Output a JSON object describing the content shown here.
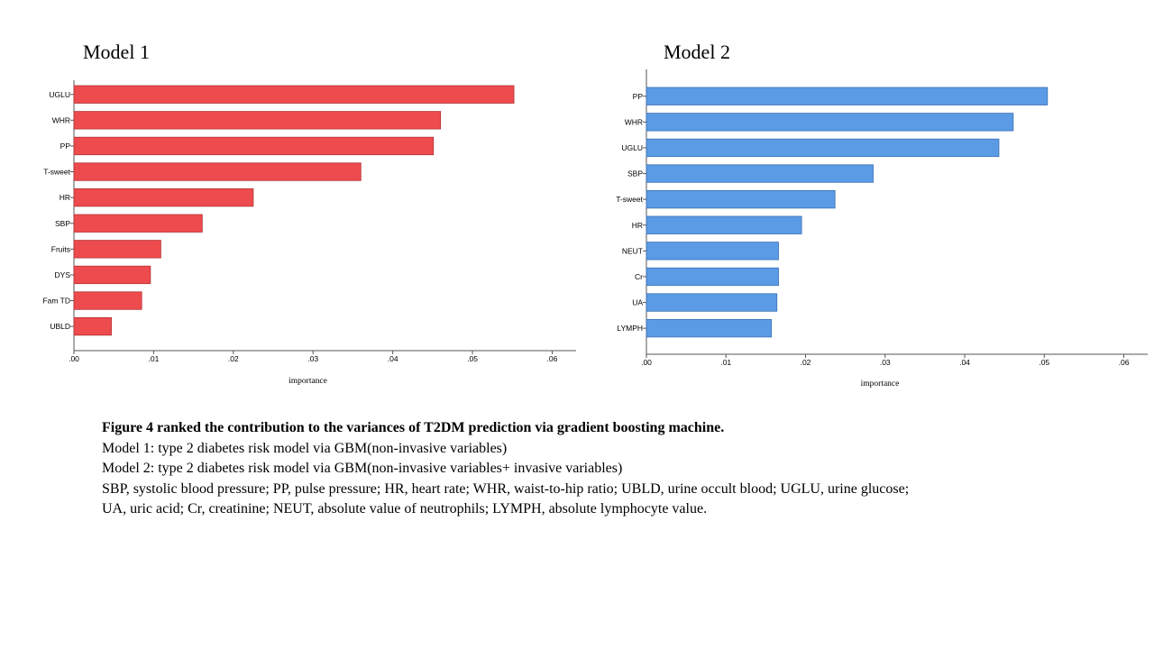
{
  "panels": [
    {
      "title": "Model 1"
    },
    {
      "title": "Model 2"
    }
  ],
  "chart_data": [
    {
      "type": "bar",
      "orientation": "horizontal",
      "title": "Model 1",
      "xlabel": "importance",
      "ylabel": "",
      "xlim": [
        0,
        0.063
      ],
      "xticks": [
        ".00",
        ".01",
        ".02",
        ".03",
        ".04",
        ".05",
        ".06"
      ],
      "color": "#ee4b4e",
      "categories": [
        "UGLU",
        "WHR",
        "PP",
        "T-sweet",
        "HR",
        "SBP",
        "Fruits",
        "DYS",
        "Fam TD",
        "UBLD"
      ],
      "values": [
        0.0552,
        0.046,
        0.0451,
        0.036,
        0.0225,
        0.0161,
        0.0109,
        0.0096,
        0.0085,
        0.0047
      ]
    },
    {
      "type": "bar",
      "orientation": "horizontal",
      "title": "Model 2",
      "xlabel": "importance",
      "ylabel": "",
      "xlim": [
        0,
        0.063
      ],
      "xticks": [
        ".00",
        ".01",
        ".02",
        ".03",
        ".04",
        ".05",
        ".06"
      ],
      "color": "#5b9be5",
      "categories": [
        "PP",
        "WHR",
        "UGLU",
        "SBP",
        "T-sweet",
        "HR",
        "NEUT",
        "Cr",
        "UA",
        "LYMPH"
      ],
      "values": [
        0.0504,
        0.0461,
        0.0443,
        0.0285,
        0.0237,
        0.0195,
        0.0166,
        0.0166,
        0.0164,
        0.0157
      ]
    }
  ],
  "caption": {
    "heading": "Figure 4 ranked the contribution to the variances of T2DM prediction via gradient boosting machine.",
    "line1": "Model 1: type 2 diabetes risk model via GBM(non-invasive variables)",
    "line2": "Model 2: type 2 diabetes risk model via GBM(non-invasive variables+ invasive variables)",
    "line3": "SBP, systolic blood pressure; PP, pulse pressure; HR, heart rate; WHR, waist-to-hip ratio; UBLD, urine occult blood; UGLU, urine glucose;",
    "line4": "UA, uric acid; Cr, creatinine; NEUT, absolute value of neutrophils; LYMPH, absolute lymphocyte value."
  }
}
